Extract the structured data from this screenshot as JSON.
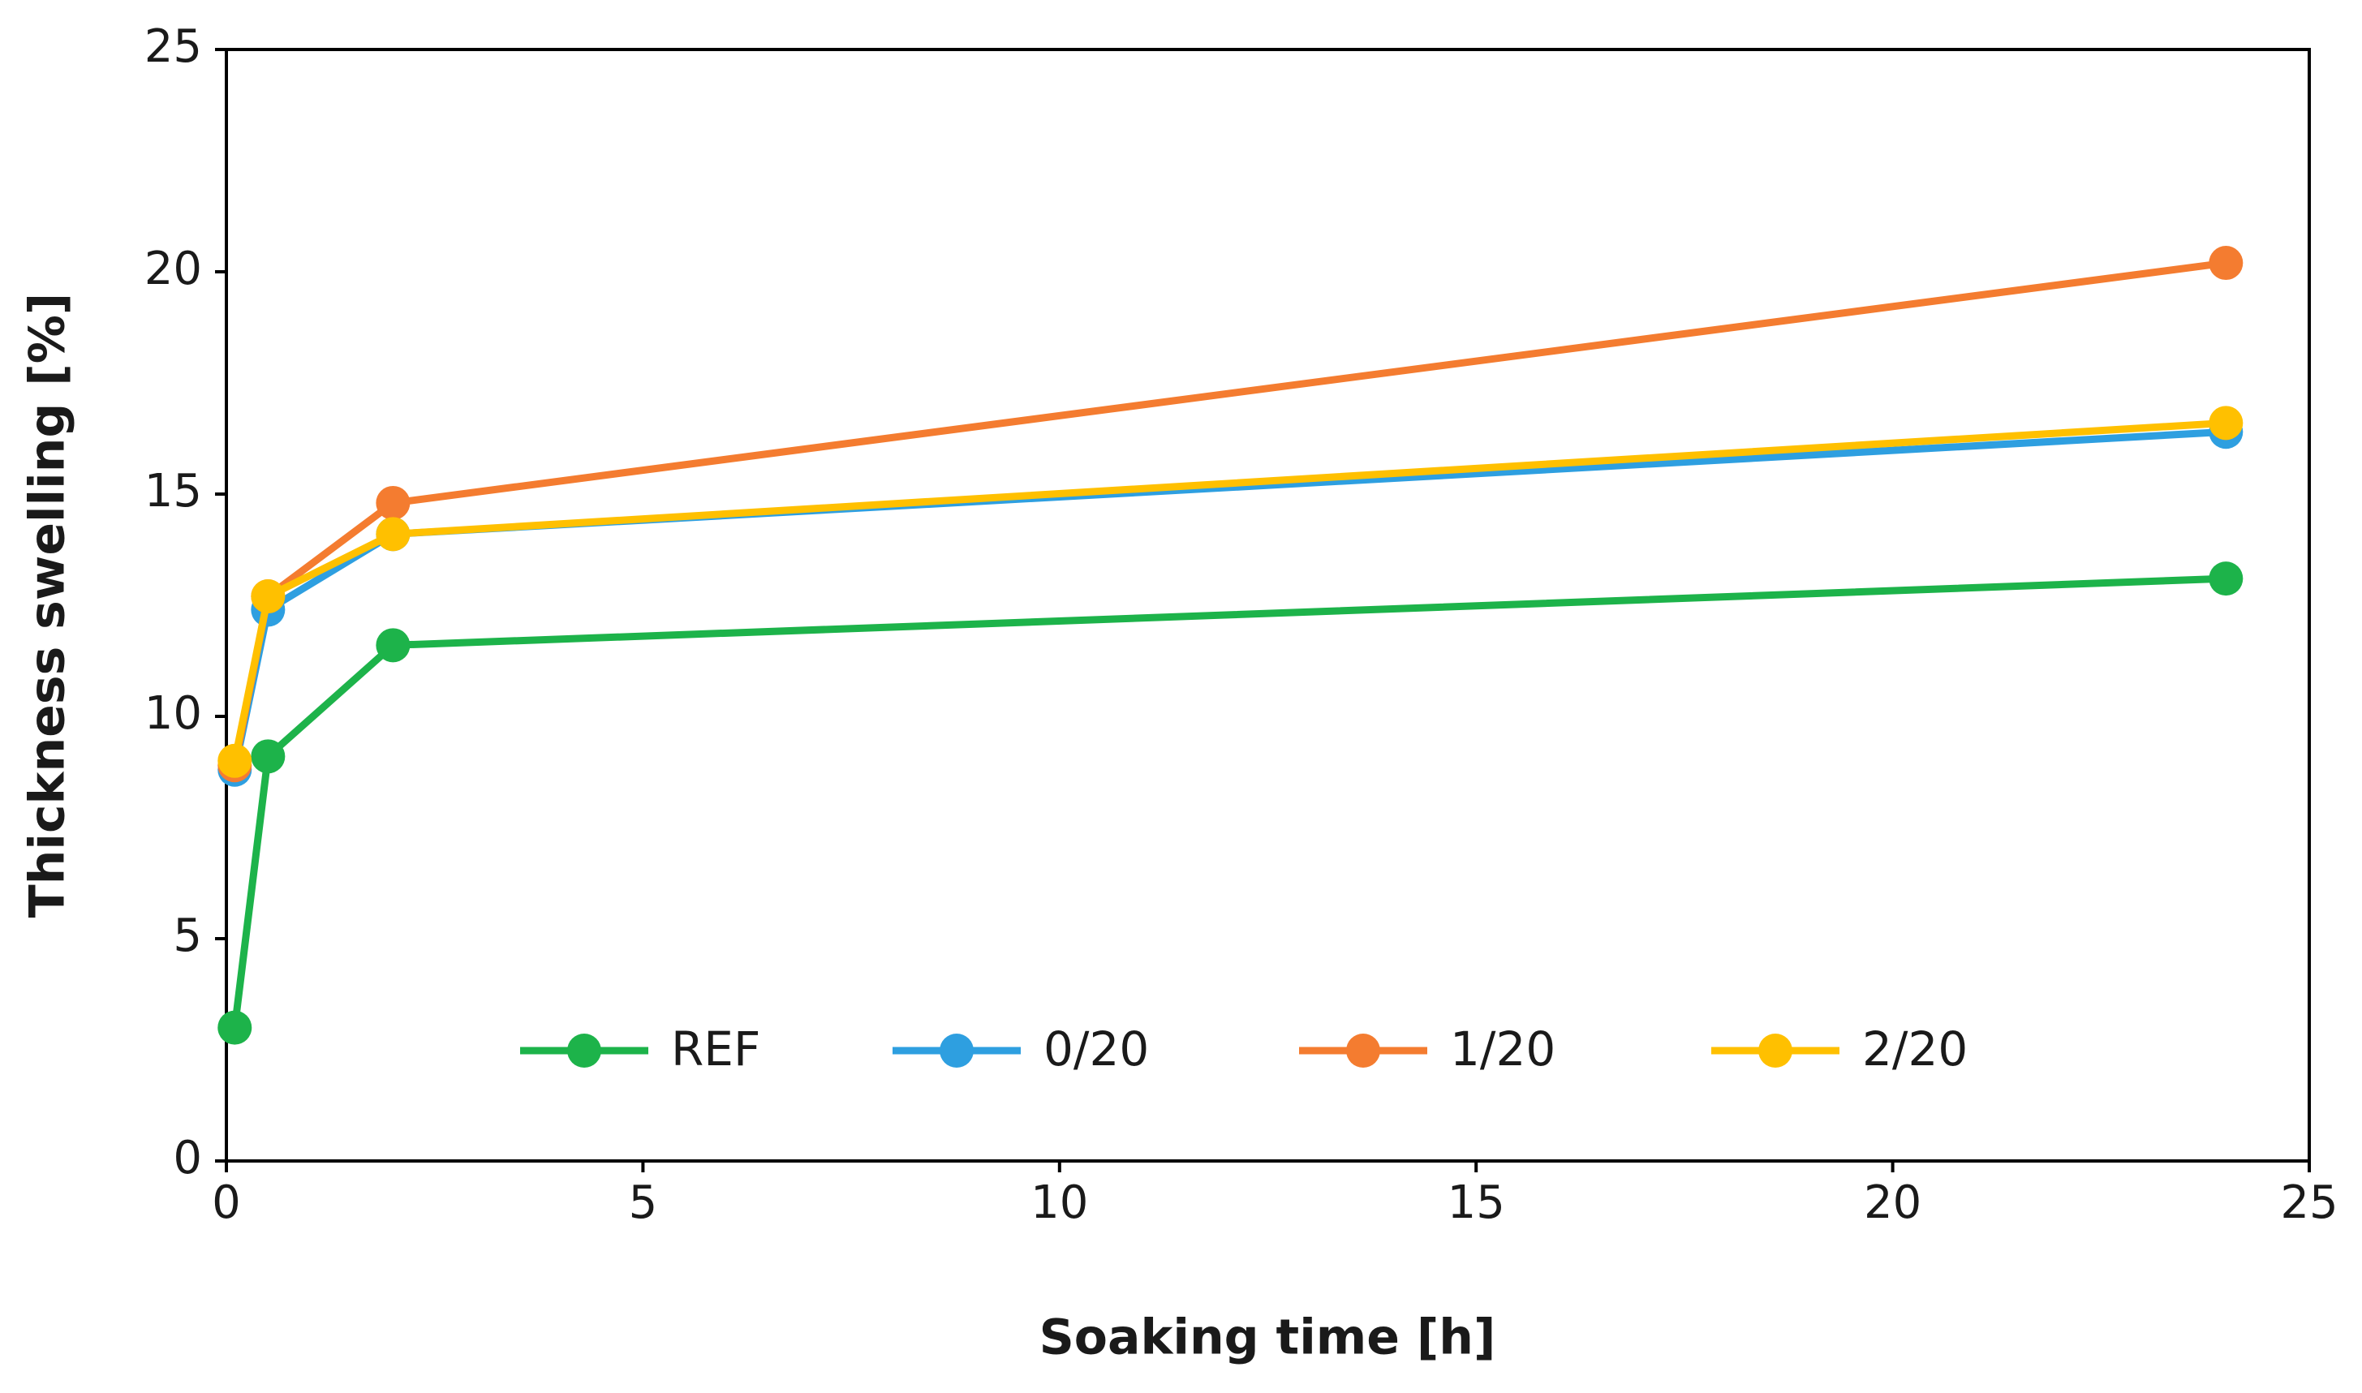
{
  "chart_data": {
    "type": "line",
    "x_label": "Soaking time [h]",
    "y_label": "Thickness swelling [%]",
    "x": [
      0.1,
      0.5,
      2,
      24
    ],
    "series": [
      {
        "name": "REF",
        "color": "#1db34a",
        "values": [
          3.0,
          9.1,
          11.6,
          13.1
        ]
      },
      {
        "name": "0/20",
        "color": "#2e9fe0",
        "values": [
          8.8,
          12.4,
          14.1,
          16.4
        ]
      },
      {
        "name": "1/20",
        "color": "#f47c30",
        "values": [
          8.9,
          12.7,
          14.8,
          20.2
        ]
      },
      {
        "name": "2/20",
        "color": "#ffc000",
        "values": [
          9.0,
          12.7,
          14.1,
          16.6
        ]
      }
    ],
    "xlim": [
      0,
      25
    ],
    "xticks": [
      0,
      5,
      10,
      15,
      20,
      25
    ],
    "ylim": [
      0,
      25
    ],
    "yticks": [
      0,
      5,
      10,
      15,
      20,
      25
    ],
    "grid": false,
    "legend": "lower center"
  }
}
